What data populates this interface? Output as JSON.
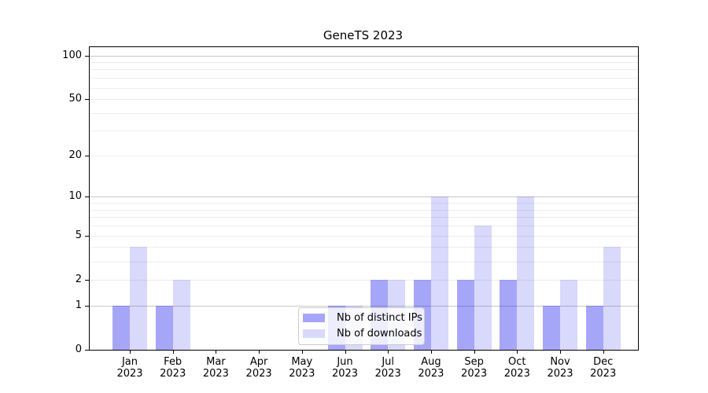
{
  "chart_data": {
    "type": "bar",
    "title": "GeneTS 2023",
    "categories": [
      {
        "month": "Jan",
        "year": "2023"
      },
      {
        "month": "Feb",
        "year": "2023"
      },
      {
        "month": "Mar",
        "year": "2023"
      },
      {
        "month": "Apr",
        "year": "2023"
      },
      {
        "month": "May",
        "year": "2023"
      },
      {
        "month": "Jun",
        "year": "2023"
      },
      {
        "month": "Jul",
        "year": "2023"
      },
      {
        "month": "Aug",
        "year": "2023"
      },
      {
        "month": "Sep",
        "year": "2023"
      },
      {
        "month": "Oct",
        "year": "2023"
      },
      {
        "month": "Nov",
        "year": "2023"
      },
      {
        "month": "Dec",
        "year": "2023"
      }
    ],
    "series": [
      {
        "name": "Nb of distinct IPs",
        "color": "#0000ee59",
        "values": [
          1,
          1,
          0,
          0,
          0,
          1,
          2,
          2,
          2,
          2,
          1,
          1
        ]
      },
      {
        "name": "Nb of downloads",
        "color": "#0000ee26",
        "values": [
          4,
          2,
          0,
          0,
          0,
          1,
          2,
          10,
          6,
          10,
          2,
          4
        ]
      }
    ],
    "yscale": "log1p",
    "ylim": [
      0,
      112
    ],
    "yticks": [
      0,
      1,
      2,
      5,
      10,
      20,
      50,
      100
    ],
    "gridlines": {
      "major": [
        1,
        10,
        100
      ],
      "minor": [
        2,
        3,
        4,
        5,
        6,
        7,
        8,
        9,
        20,
        30,
        40,
        50,
        60,
        70,
        80,
        90
      ]
    },
    "legend_position": "lower center, inside plot",
    "grid": "on"
  }
}
